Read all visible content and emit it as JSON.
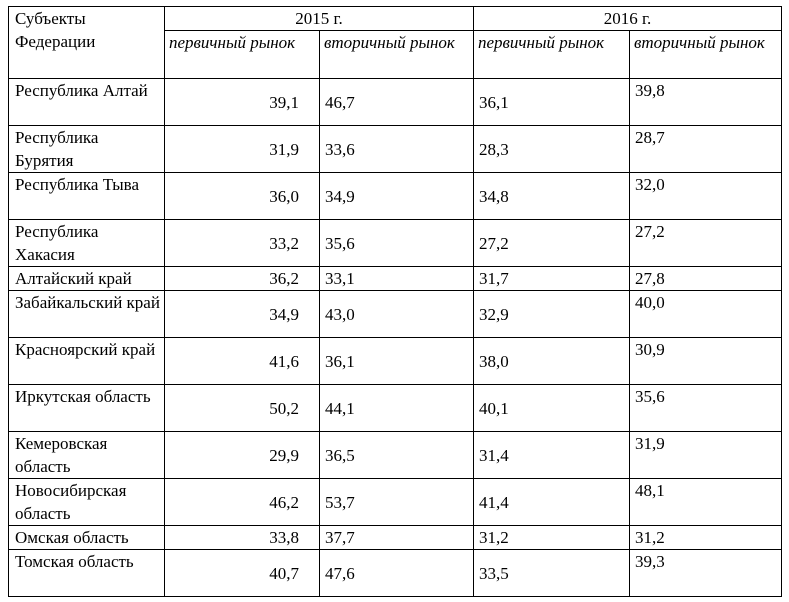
{
  "header": {
    "region": "Субъекты Федерации",
    "year_2015": "2015 г.",
    "year_2016": "2016 г.",
    "primary": "первичный рынок",
    "secondary": "вторичный рынок"
  },
  "rows": [
    {
      "region": "Республика Алтай",
      "p2015": "39,1",
      "s2015": "46,7",
      "p2016": "36,1",
      "s2016": "39,8"
    },
    {
      "region": "Республика Бурятия",
      "p2015": "31,9",
      "s2015": "33,6",
      "p2016": "28,3",
      "s2016": "28,7"
    },
    {
      "region": "Республика Тыва",
      "p2015": "36,0",
      "s2015": "34,9",
      "p2016": "34,8",
      "s2016": "32,0"
    },
    {
      "region": "Республика Хакасия",
      "p2015": "33,2",
      "s2015": "35,6",
      "p2016": "27,2",
      "s2016": "27,2"
    },
    {
      "region": "Алтайский край",
      "p2015": "36,2",
      "s2015": "33,1",
      "p2016": "31,7",
      "s2016": "27,8"
    },
    {
      "region": "Забайкальский край",
      "p2015": "34,9",
      "s2015": "43,0",
      "p2016": "32,9",
      "s2016": "40,0"
    },
    {
      "region": "Красноярский край",
      "p2015": "41,6",
      "s2015": "36,1",
      "p2016": "38,0",
      "s2016": "30,9"
    },
    {
      "region": "Иркутская область",
      "p2015": "50,2",
      "s2015": "44,1",
      "p2016": "40,1",
      "s2016": "35,6"
    },
    {
      "region": "Кемеровская область",
      "p2015": "29,9",
      "s2015": "36,5",
      "p2016": "31,4",
      "s2016": "31,9"
    },
    {
      "region": "Новосибирская область",
      "p2015": "46,2",
      "s2015": "53,7",
      "p2016": "41,4",
      "s2016": "48,1"
    },
    {
      "region": "Омская область",
      "p2015": "33,8",
      "s2015": "37,7",
      "p2016": "31,2",
      "s2016": "31,2"
    },
    {
      "region": "Томская область",
      "p2015": "40,7",
      "s2015": "47,6",
      "p2016": "33,5",
      "s2016": "39,3"
    }
  ]
}
